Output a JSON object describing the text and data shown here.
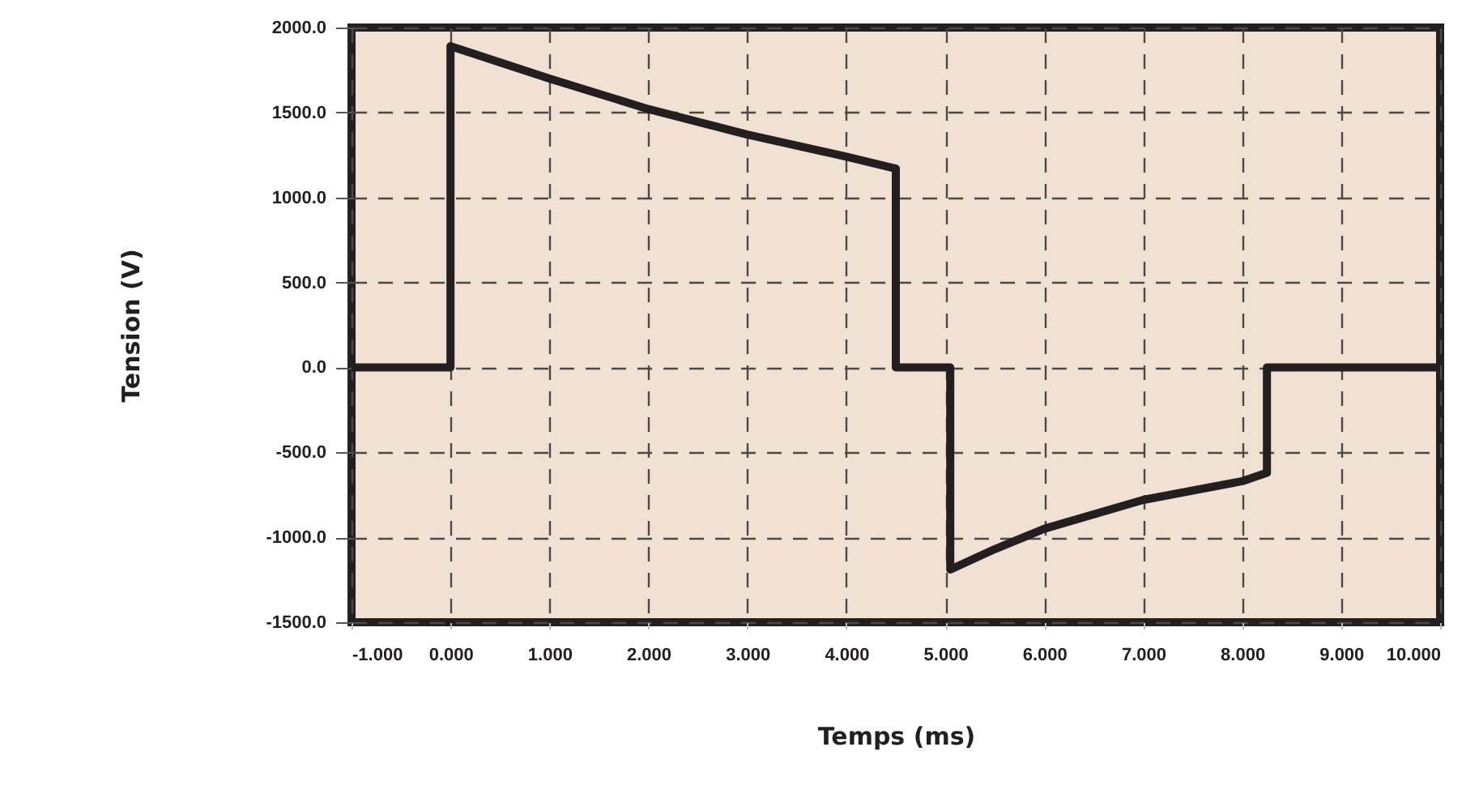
{
  "chart_data": {
    "type": "line",
    "xlabel": "Temps (ms)",
    "ylabel": "Tension (V)",
    "x": [
      -1,
      0,
      0,
      1,
      2,
      3,
      4,
      4.5,
      4.5,
      5.05,
      5.05,
      5.5,
      6,
      7,
      8,
      8.25,
      8.25,
      10
    ],
    "series": [
      {
        "color": "#231f20",
        "values": [
          0,
          0,
          1890,
          1700,
          1520,
          1370,
          1240,
          1170,
          0,
          0,
          -1190,
          -1070,
          -950,
          -780,
          -670,
          -620,
          0,
          0
        ]
      }
    ],
    "xlim": [
      -1,
      10
    ],
    "xticks": [
      {
        "value": -1,
        "label": "-1.000"
      },
      {
        "value": 0,
        "label": "0.000"
      },
      {
        "value": 1,
        "label": "1.000"
      },
      {
        "value": 2,
        "label": "2.000"
      },
      {
        "value": 3,
        "label": "3.000"
      },
      {
        "value": 4,
        "label": "4.000"
      },
      {
        "value": 5,
        "label": "5.000"
      },
      {
        "value": 6,
        "label": "6.000"
      },
      {
        "value": 7,
        "label": "7.000"
      },
      {
        "value": 8,
        "label": "8.000"
      },
      {
        "value": 9,
        "label": "9.000"
      },
      {
        "value": 10,
        "label": "10.000"
      }
    ],
    "ylim": [
      -1500,
      2000
    ],
    "yticks": [
      {
        "value": -1500,
        "label": "-1500.0"
      },
      {
        "value": -1000,
        "label": "-1000.0"
      },
      {
        "value": -500,
        "label": "-500.0"
      },
      {
        "value": 0,
        "label": "0.0"
      },
      {
        "value": 500,
        "label": "500.0"
      },
      {
        "value": 1000,
        "label": "1000.0"
      },
      {
        "value": 1500,
        "label": "1500.0"
      },
      {
        "value": 2000,
        "label": "2000.0"
      }
    ],
    "grid": true,
    "marker": "none",
    "line_style": "solid"
  }
}
